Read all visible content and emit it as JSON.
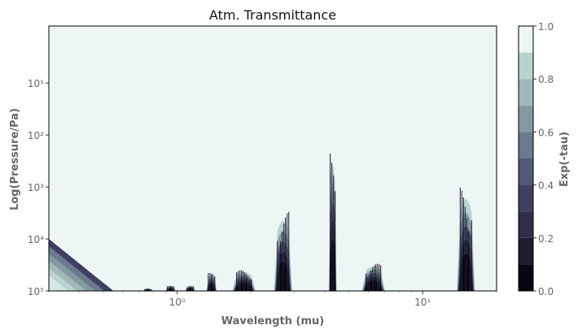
{
  "chart_data": {
    "type": "heatmap",
    "subtype": "filled-contour",
    "title": "Atm. Transmittance",
    "xlabel": "Wavelength (mu)",
    "ylabel": "Log(Pressure/Pa)",
    "x_scale": "log",
    "y_scale": "log",
    "y_inverted": true,
    "xlim": [
      0.3,
      20
    ],
    "ylim": [
      100000,
      0.8
    ],
    "x_ticks": [
      {
        "value": 1,
        "label": "10⁰"
      },
      {
        "value": 10,
        "label": "10¹"
      }
    ],
    "y_ticks": [
      {
        "value": 10,
        "label": "10¹"
      },
      {
        "value": 100,
        "label": "10²"
      },
      {
        "value": 1000,
        "label": "10³"
      },
      {
        "value": 10000,
        "label": "10⁴"
      },
      {
        "value": 100000,
        "label": "10⁵"
      }
    ],
    "colorbar": {
      "label": "Exp(-tau)",
      "range": [
        0.0,
        1.0
      ],
      "levels": [
        0.0,
        0.1,
        0.2,
        0.3,
        0.4,
        0.5,
        0.6,
        0.7,
        0.8,
        0.9,
        1.0
      ],
      "ticks": [
        {
          "value": 0.0,
          "label": "0.0"
        },
        {
          "value": 0.2,
          "label": "0.2"
        },
        {
          "value": 0.4,
          "label": "0.4"
        },
        {
          "value": 0.6,
          "label": "0.6"
        },
        {
          "value": 0.8,
          "label": "0.8"
        },
        {
          "value": 1.0,
          "label": "1.0"
        }
      ],
      "colors": [
        "#070710",
        "#1c1c2c",
        "#2e2e48",
        "#3f3f62",
        "#555878",
        "#6b7a8e",
        "#8499a2",
        "#9fb8b8",
        "#b9d2d0",
        "#d2e6e4"
      ]
    },
    "background_value": 1.0,
    "background_color": "#eef5f5",
    "absorption_features": [
      {
        "center": 0.76,
        "top_pressure": 90000
      },
      {
        "center": 0.94,
        "top_pressure": 80000
      },
      {
        "center": 1.13,
        "top_pressure": 78000
      },
      {
        "center": 1.38,
        "top_pressure": 45000
      },
      {
        "center": 1.87,
        "top_pressure": 40000
      },
      {
        "center": 2.7,
        "top_pressure": 3000
      },
      {
        "center": 4.3,
        "top_pressure": 180
      },
      {
        "center": 6.3,
        "top_pressure": 30000
      },
      {
        "center": 15.0,
        "top_pressure": 1000
      }
    ],
    "short_wavelength_band": {
      "x_end": 0.55,
      "top_pressure": 10000
    }
  }
}
